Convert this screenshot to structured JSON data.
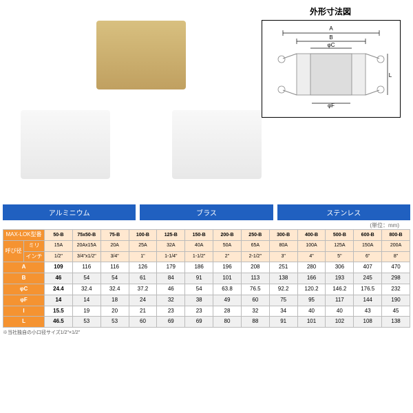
{
  "diagram_title": "外形寸法図",
  "diagram_labels": {
    "A": "A",
    "B": "B",
    "C": "φC",
    "F": "φF",
    "L": "L"
  },
  "material_labels": [
    "アルミニウム",
    "ブラス",
    "ステンレス"
  ],
  "unit_note": "(単位：mm)",
  "footnote": "※当社独自の小口径サイズ1/2\"×1/2\"",
  "header": {
    "model": "MAX-LOK型番",
    "size_label": "呼び径",
    "mm": "ミリ",
    "inch": "インチ"
  },
  "columns": [
    {
      "model": "50-B",
      "mm": "15A",
      "inch": "1/2\""
    },
    {
      "model": "75x50-B",
      "mm": "20Ax15A",
      "inch": "3/4\"x1/2\""
    },
    {
      "model": "75-B",
      "mm": "20A",
      "inch": "3/4\""
    },
    {
      "model": "100-B",
      "mm": "25A",
      "inch": "1\""
    },
    {
      "model": "125-B",
      "mm": "32A",
      "inch": "1-1/4\""
    },
    {
      "model": "150-B",
      "mm": "40A",
      "inch": "1-1/2\""
    },
    {
      "model": "200-B",
      "mm": "50A",
      "inch": "2\""
    },
    {
      "model": "250-B",
      "mm": "65A",
      "inch": "2-1/2\""
    },
    {
      "model": "300-B",
      "mm": "80A",
      "inch": "3\""
    },
    {
      "model": "400-B",
      "mm": "100A",
      "inch": "4\""
    },
    {
      "model": "500-B",
      "mm": "125A",
      "inch": "5\""
    },
    {
      "model": "600-B",
      "mm": "150A",
      "inch": "6\""
    },
    {
      "model": "800-B",
      "mm": "200A",
      "inch": "8\""
    }
  ],
  "rows": [
    {
      "label": "A",
      "values": [
        "109",
        "116",
        "116",
        "126",
        "179",
        "186",
        "196",
        "208",
        "251",
        "280",
        "306",
        "407",
        "470"
      ]
    },
    {
      "label": "B",
      "values": [
        "46",
        "54",
        "54",
        "61",
        "84",
        "91",
        "101",
        "113",
        "138",
        "166",
        "193",
        "245",
        "298"
      ]
    },
    {
      "label": "φC",
      "values": [
        "24.4",
        "32.4",
        "32.4",
        "37.2",
        "46",
        "54",
        "63.8",
        "76.5",
        "92.2",
        "120.2",
        "146.2",
        "176.5",
        "232"
      ]
    },
    {
      "label": "φF",
      "values": [
        "14",
        "14",
        "18",
        "24",
        "32",
        "38",
        "49",
        "60",
        "75",
        "95",
        "117",
        "144",
        "190"
      ]
    },
    {
      "label": "I",
      "values": [
        "15.5",
        "19",
        "20",
        "21",
        "23",
        "23",
        "28",
        "32",
        "34",
        "40",
        "40",
        "43",
        "45"
      ]
    },
    {
      "label": "L",
      "values": [
        "46.5",
        "53",
        "53",
        "60",
        "69",
        "69",
        "80",
        "88",
        "91",
        "101",
        "102",
        "108",
        "138"
      ]
    }
  ],
  "colors": {
    "header_bg": "#f59331",
    "header_fg": "#ffffff",
    "subheader_bg": "#ffe8d0",
    "band_bg": "#2060c0",
    "alt_row": "#f0f0f0",
    "border": "#bbbbbb"
  }
}
